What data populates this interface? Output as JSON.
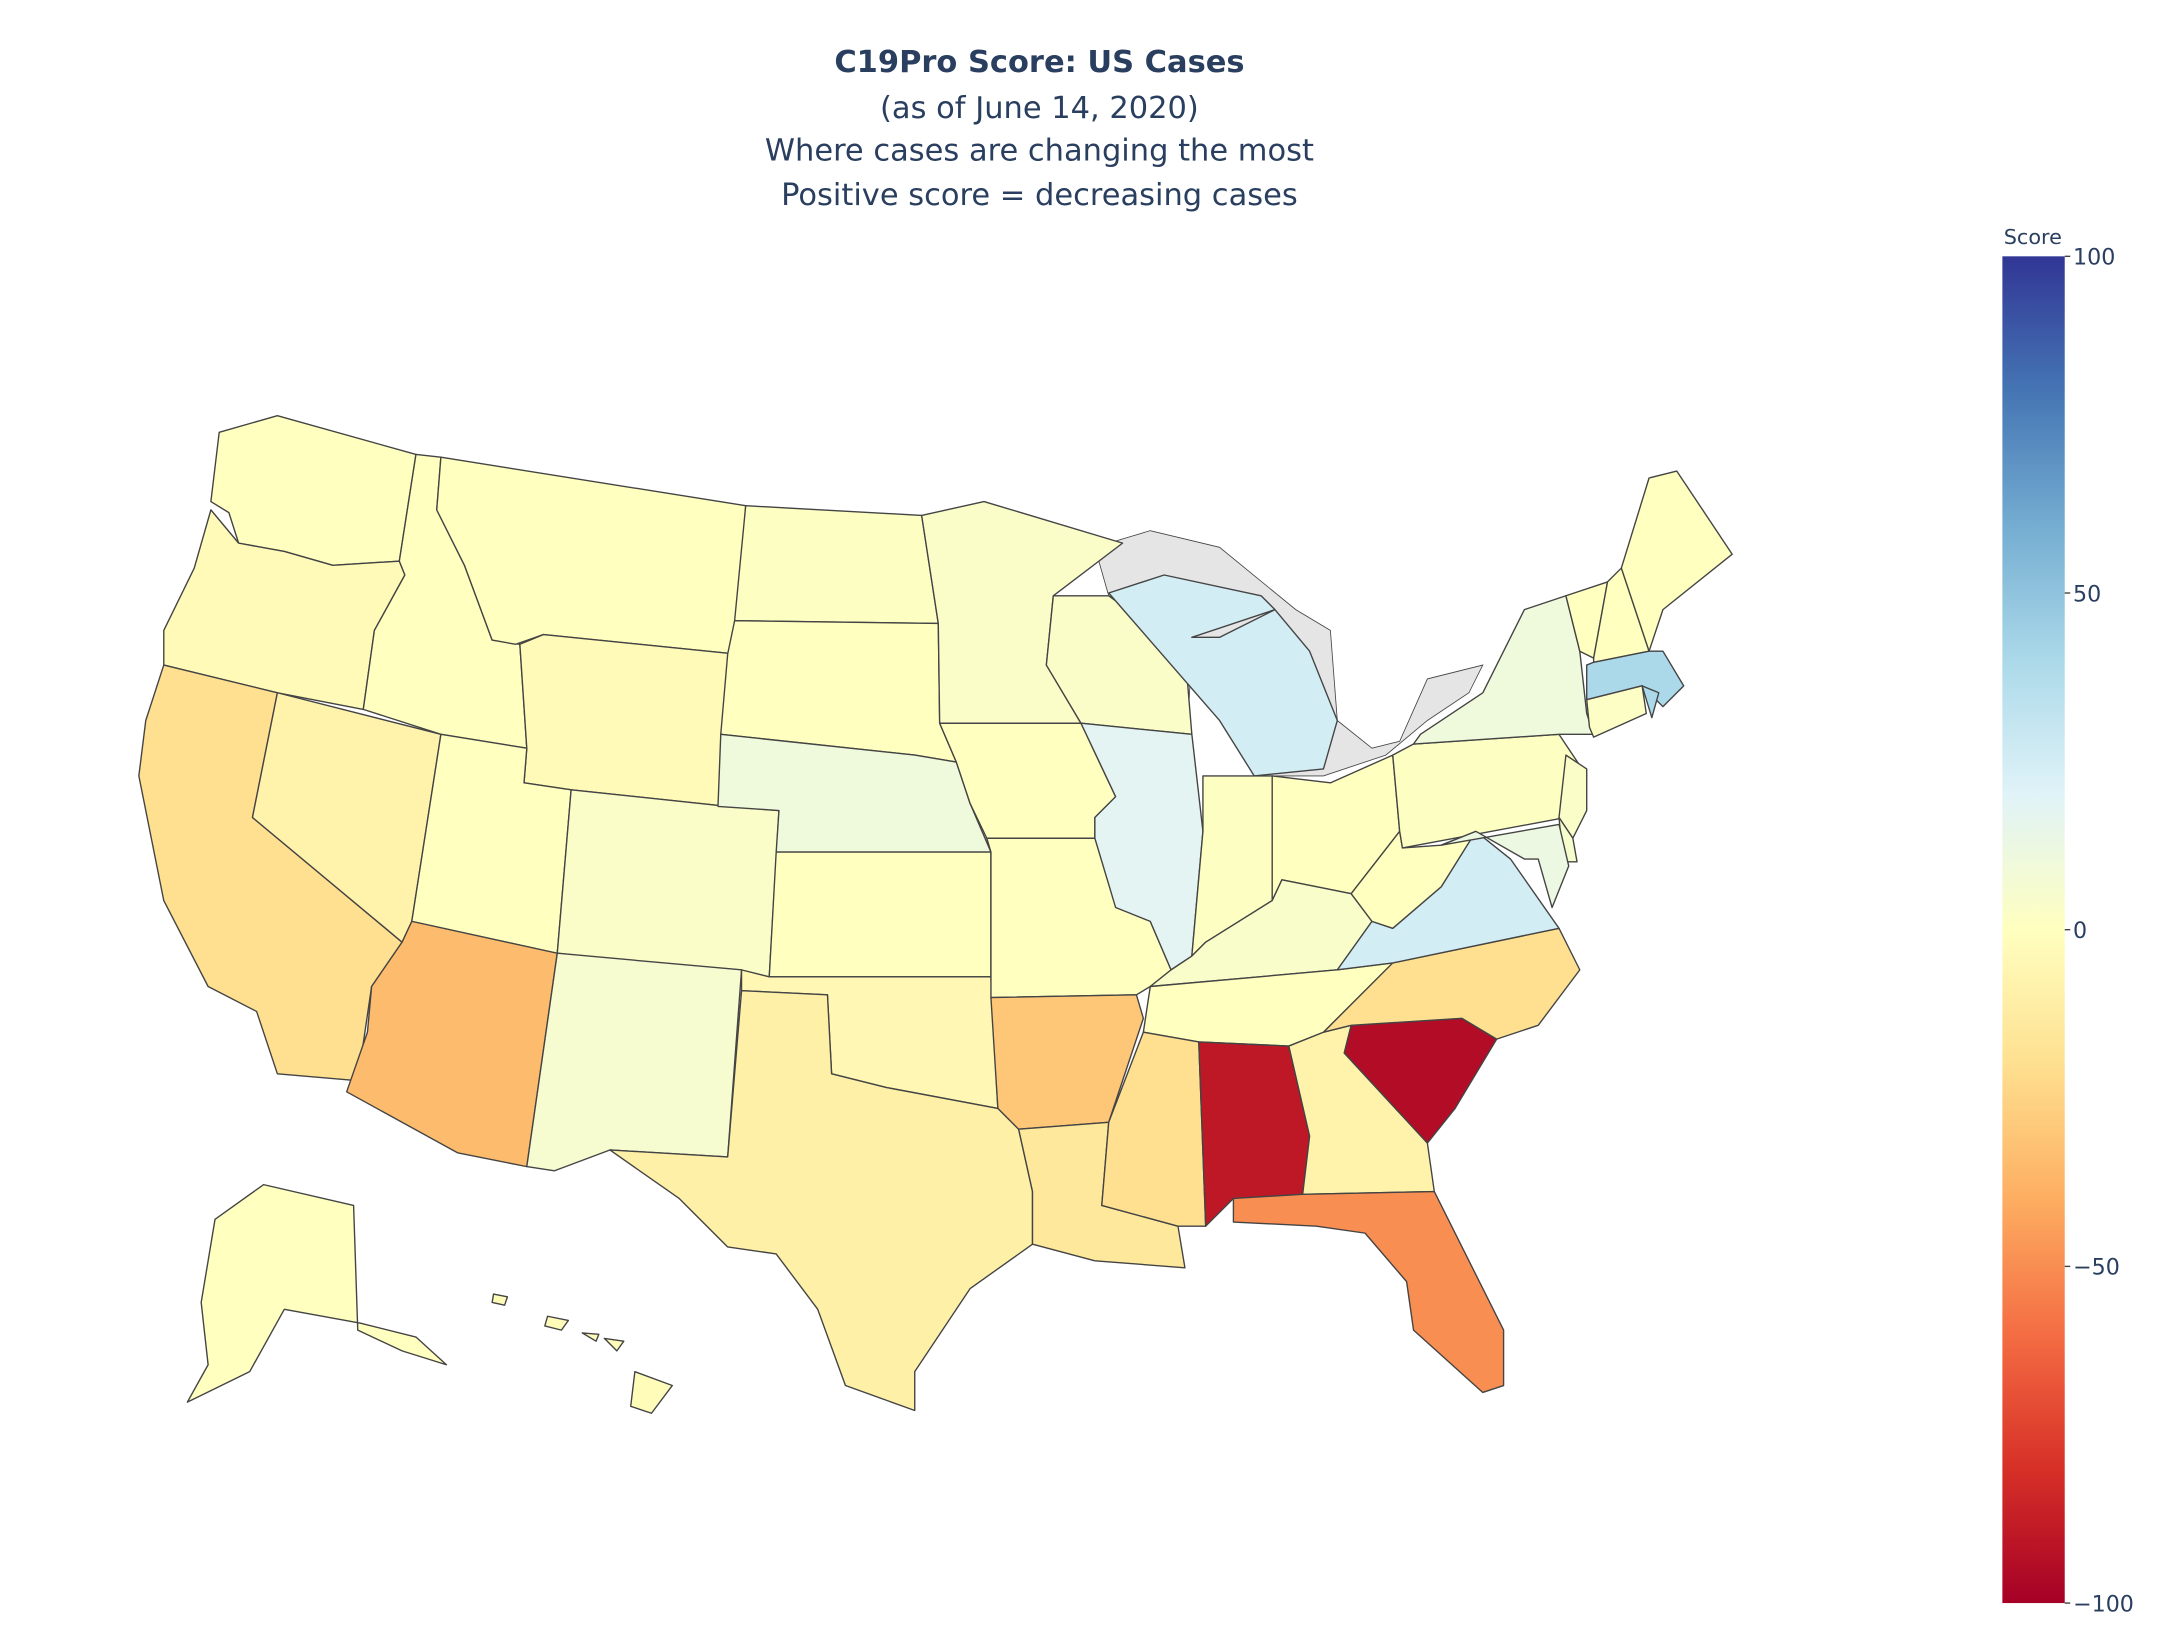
{
  "chart_data": {
    "type": "choropleth",
    "title": "C19Pro Score: US Cases",
    "subtitle": [
      "(as of June 14, 2020)",
      "Where cases are changing the most",
      "Positive score = decreasing cases"
    ],
    "values": [
      0,
      -3,
      -20,
      -8,
      0,
      0,
      -3,
      0,
      -35,
      3,
      6,
      1,
      0,
      10,
      0,
      -5,
      -10,
      3,
      0,
      0,
      -30,
      -15,
      3,
      18,
      25,
      1,
      0,
      4,
      0,
      -20,
      -90,
      -8,
      -50,
      -95,
      -20,
      25,
      0,
      1,
      10,
      0,
      0,
      0,
      40,
      40,
      2,
      3,
      5,
      12,
      0,
      -2
    ],
    "colorbar_title": "Score",
    "zlim": [
      -100,
      100
    ],
    "zticks": [
      {
        "value": -100,
        "label": "−100"
      },
      {
        "value": -50,
        "label": "−50"
      },
      0,
      50,
      100
    ],
    "colorscale": [
      [
        0,
        "#a50026"
      ],
      [
        0.1,
        "#d73027"
      ],
      [
        0.2,
        "#f46d43"
      ],
      [
        0.3,
        "#fdae61"
      ],
      [
        0.4,
        "#fee090"
      ],
      [
        0.5,
        "#ffffbf"
      ],
      [
        0.6,
        "#e0f3f8"
      ],
      [
        0.7,
        "#abd9e9"
      ],
      [
        0.8,
        "#74add1"
      ],
      [
        0.9,
        "#4575b4"
      ],
      [
        1,
        "#313695"
      ]
    ]
  }
}
